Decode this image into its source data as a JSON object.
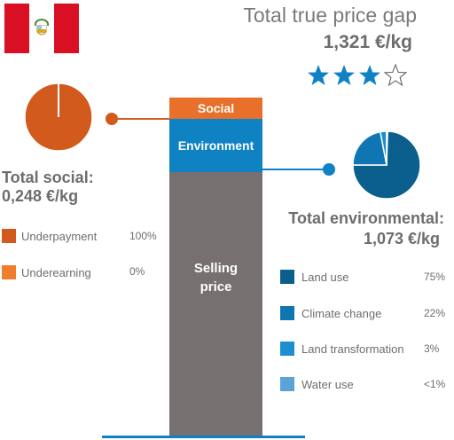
{
  "header": {
    "title": "Total true price gap",
    "total_value": "1,321 €/kg",
    "rating": 3,
    "rating_max": 4
  },
  "colors": {
    "social": "#e8702a",
    "underpayment": "#d15a1c",
    "underearning": "#ef7d2c",
    "environment": "#0f82c3",
    "land_use": "#0a5f8c",
    "climate_change": "#0f76b3",
    "land_transformation": "#1b8fd0",
    "water_use": "#5ba3d6",
    "selling_price": "#767070",
    "star": "#0f82c3",
    "text": "#6d6d6d",
    "flag_red": "#d91023"
  },
  "flag": {
    "icon": "peru-flag-icon"
  },
  "social": {
    "label": "Total social:",
    "value": "0,248 €/kg",
    "legend": [
      {
        "label": "Underpayment",
        "pct": "100%",
        "share": 1.0
      },
      {
        "label": "Underearning",
        "pct": "0%",
        "share": 0.0
      }
    ]
  },
  "environmental": {
    "label": "Total environmental:",
    "value": "1,073 €/kg",
    "legend": [
      {
        "label": "Land use",
        "pct": "75%",
        "share": 0.75
      },
      {
        "label": "Climate change",
        "pct": "22%",
        "share": 0.22
      },
      {
        "label": "Land transformation",
        "pct": "3%",
        "share": 0.03
      },
      {
        "label": "Water use",
        "pct": "<1%",
        "share": 0.005
      }
    ]
  },
  "chart_data": {
    "type": "bar",
    "stacked": true,
    "categories": [
      ""
    ],
    "series": [
      {
        "name": "Selling price",
        "label": "Selling price"
      },
      {
        "name": "Environment",
        "label": "Environment",
        "values": [
          1.073
        ]
      },
      {
        "name": "Social",
        "label": "Social",
        "values": [
          0.248
        ]
      }
    ]
  }
}
